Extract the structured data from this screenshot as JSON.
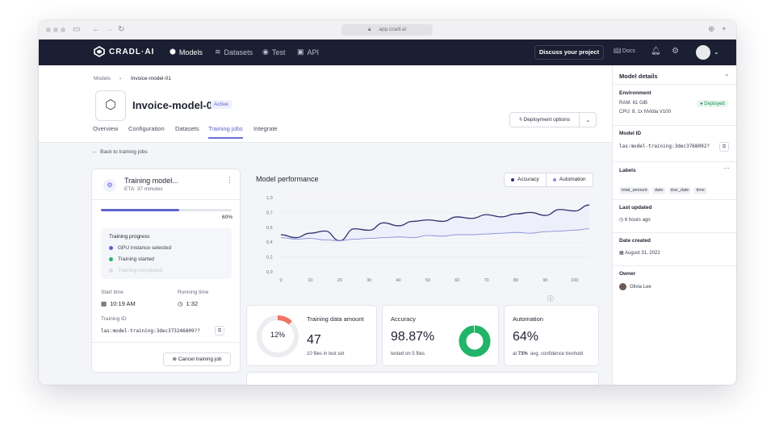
{
  "browser": {
    "url": "app.cradl.ai"
  },
  "nav": {
    "logo": "CRADL·AI",
    "items": [
      {
        "label": "Models",
        "icon": "cube-icon"
      },
      {
        "label": "Datasets",
        "icon": "layers-icon"
      },
      {
        "label": "Test",
        "icon": "flask-icon"
      },
      {
        "label": "API",
        "icon": "code-icon"
      }
    ],
    "discuss": "Discuss your project",
    "docs": "Docs"
  },
  "breadcrumb": {
    "root": "Models",
    "current": "Invoice-model-01"
  },
  "model": {
    "name": "Invoice-model-01",
    "status": "Active"
  },
  "tabs": [
    "Overview",
    "Configuration",
    "Datasets",
    "Training jobs",
    "Integrate"
  ],
  "deploy": {
    "label": "Deployment options"
  },
  "back": "Back to training jobs",
  "training": {
    "title": "Training model...",
    "eta": "ETA: 37 minutes",
    "progress": 0.6,
    "progress_label": "60%",
    "progress_heading": "Training progress",
    "steps": [
      {
        "label": "GPU instance selected",
        "state": "done"
      },
      {
        "label": "Training started",
        "state": "active"
      },
      {
        "label": "Training completed",
        "state": "pending"
      }
    ],
    "start_label": "Start time",
    "start_value": "10:19 AM",
    "running_label": "Running time",
    "running_value": "1:32",
    "id_label": "Training ID",
    "id_value": "las:model-training:3dec373246809??",
    "cancel": "Cancel training job"
  },
  "performance": {
    "title": "Model performance",
    "legend": [
      "Accuracy",
      "Automation"
    ]
  },
  "chart_data": {
    "type": "line",
    "x": [
      0,
      5,
      10,
      15,
      20,
      25,
      30,
      35,
      40,
      45,
      50,
      55,
      60,
      65,
      70,
      75,
      80,
      85,
      90,
      95,
      100,
      105
    ],
    "xticks": [
      "0",
      "10",
      "20",
      "30",
      "40",
      "50",
      "60",
      "70",
      "80",
      "90",
      "100"
    ],
    "yticks": [
      "0,0",
      "0,2",
      "0,4",
      "0,6",
      "0,7",
      "1,0"
    ],
    "ylim": [
      0,
      1
    ],
    "xlim": [
      0,
      105
    ],
    "series": [
      {
        "name": "Accuracy",
        "color": "#2f3170",
        "values": [
          0.5,
          0.46,
          0.52,
          0.55,
          0.42,
          0.58,
          0.56,
          0.66,
          0.62,
          0.68,
          0.7,
          0.68,
          0.74,
          0.72,
          0.77,
          0.74,
          0.78,
          0.8,
          0.76,
          0.84,
          0.82,
          0.9
        ]
      },
      {
        "name": "Automation",
        "color": "#8a8ed9",
        "values": [
          0.46,
          0.44,
          0.45,
          0.43,
          0.42,
          0.44,
          0.45,
          0.46,
          0.47,
          0.46,
          0.49,
          0.48,
          0.5,
          0.5,
          0.51,
          0.52,
          0.53,
          0.52,
          0.54,
          0.55,
          0.56,
          0.58
        ]
      }
    ]
  },
  "stats": {
    "training_data": {
      "title": "Training data amount",
      "ring_label": "12%",
      "ring_value": 0.12,
      "value": "47",
      "sub": "10 files in test set"
    },
    "accuracy": {
      "title": "Accuracy",
      "value": "98.87%",
      "sub": "tested on 5 files",
      "ring_value": 0.9887
    },
    "automation": {
      "title": "Automation",
      "value": "64%",
      "sub_strong": "73%",
      "sub": "avg. confidence treshold",
      "sub_prefix": "at"
    }
  },
  "details": {
    "title": "Model details",
    "environment": {
      "label": "Environment",
      "ram": "RAM: 61 GiB",
      "cpu": "CPU: 8, 1x NVidia V100",
      "status": "Deployed"
    },
    "model_id": {
      "label": "Model ID",
      "value": "las:model-training:3dec3768092?"
    },
    "labels": {
      "label": "Labels",
      "items": [
        "total_amount",
        "date",
        "due_date",
        "time"
      ]
    },
    "last_updated": {
      "label": "Last updated",
      "value": "6 hours ago"
    },
    "date_created": {
      "label": "Date created",
      "value": "August 31, 2022"
    },
    "owner": {
      "label": "Owner",
      "value": "Olivia Lee"
    }
  },
  "colors": {
    "accent": "#5b5fc7",
    "nav_bg": "#1b1f33",
    "green": "#22b469",
    "coral": "#f07367"
  }
}
